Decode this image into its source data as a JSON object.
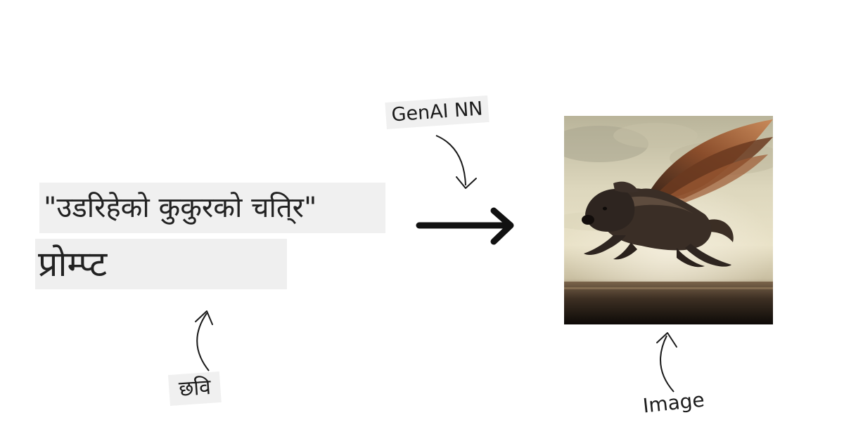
{
  "prompt": {
    "quote_text": "\"उडरिहेको कुकुरको चति्र\"",
    "label": "प्रोम्प्ट"
  },
  "model": {
    "label": "GenAI NN"
  },
  "annotations": {
    "input_label": "छवि",
    "output_label": "Image"
  },
  "output_image": {
    "description": "winged dog flying over a sunset plain",
    "icon": "winged-dog-painting"
  }
}
